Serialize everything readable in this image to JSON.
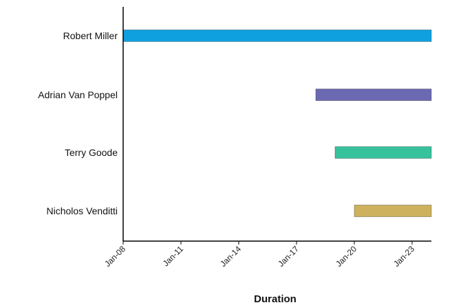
{
  "chart_data": {
    "type": "bar",
    "orientation": "horizontal",
    "chart_subtype": "gantt",
    "xlabel": "Duration",
    "ylabel": "",
    "title": "",
    "grid": false,
    "legend": "none",
    "x_ticks": [
      "Jan-08",
      "Jan-11",
      "Jan-14",
      "Jan-17",
      "Jan-20",
      "Jan-23"
    ],
    "xlim": [
      "Jan-08",
      "Jan-24"
    ],
    "categories": [
      "Robert Miller",
      "Adrian Van Poppel",
      "Terry Goode",
      "Nicholos Venditti"
    ],
    "series": [
      {
        "category": "Robert Miller",
        "start": "Jan-08",
        "end": "Jan-24",
        "color": "#0fa0e0"
      },
      {
        "category": "Adrian Van Poppel",
        "start": "Jan-18",
        "end": "Jan-24",
        "color": "#6b69b2"
      },
      {
        "category": "Terry Goode",
        "start": "Jan-19",
        "end": "Jan-24",
        "color": "#36c39c"
      },
      {
        "category": "Nicholos Venditti",
        "start": "Jan-20",
        "end": "Jan-24",
        "color": "#cdb15d"
      }
    ]
  }
}
